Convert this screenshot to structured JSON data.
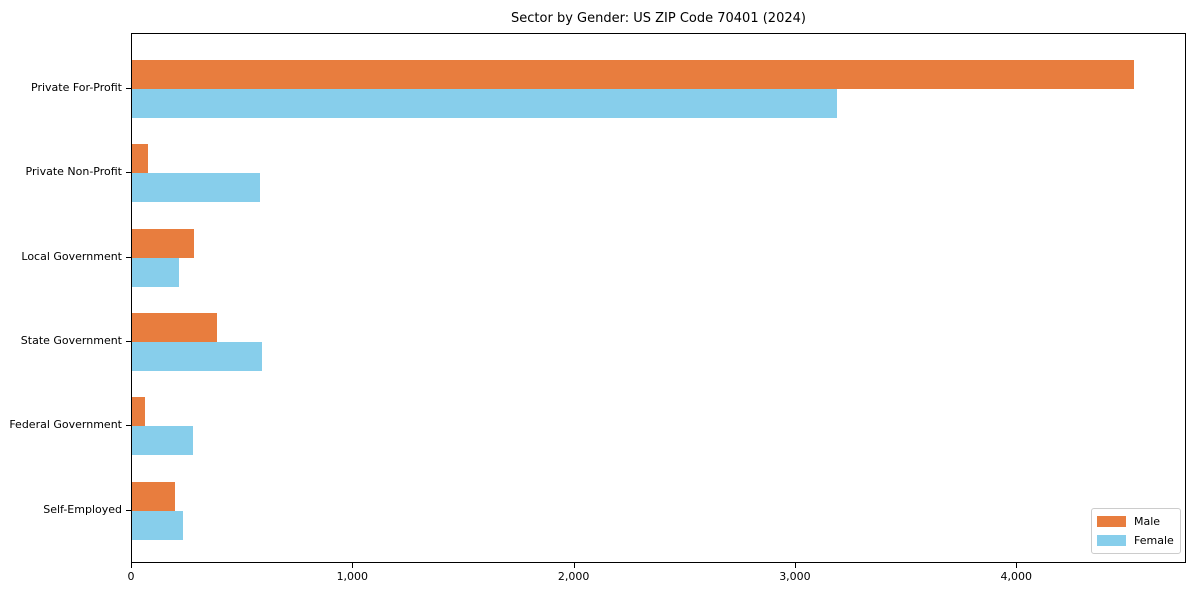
{
  "chart_data": {
    "type": "bar",
    "orientation": "horizontal",
    "title": "Sector by Gender: US ZIP Code 70401 (2024)",
    "categories": [
      "Private For-Profit",
      "Private Non-Profit",
      "Local Government",
      "State Government",
      "Federal Government",
      "Self-Employed"
    ],
    "series": [
      {
        "name": "Male",
        "color": "#e87d3e",
        "values": [
          4537,
          72,
          282,
          384,
          59,
          193
        ]
      },
      {
        "name": "Female",
        "color": "#87ceeb",
        "values": [
          3192,
          580,
          214,
          587,
          274,
          232
        ]
      }
    ],
    "xlabel": "",
    "ylabel": "",
    "xlim": [
      0,
      4767
    ],
    "x_ticks": [
      0,
      1000,
      2000,
      3000,
      4000
    ],
    "x_tick_labels": [
      "0",
      "1,000",
      "2,000",
      "3,000",
      "4,000"
    ],
    "grid": false,
    "legend_position": "lower right",
    "colors": {
      "male": "#e87d3e",
      "female": "#87ceeb",
      "axis": "#000000",
      "legend_border": "#cccccc",
      "background": "#ffffff"
    }
  }
}
